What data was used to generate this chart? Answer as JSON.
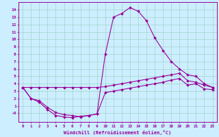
{
  "xlabel": "Windchill (Refroidissement éolien,°C)",
  "bg_color": "#cceeff",
  "line_color": "#990099",
  "grid_color": "#99ccbb",
  "xlim": [
    -0.5,
    23.5
  ],
  "ylim": [
    -1.2,
    15.0
  ],
  "line_peak": [
    3.5,
    2.0,
    1.7,
    0.8,
    0.1,
    -0.2,
    -0.3,
    -0.5,
    -0.3,
    -0.1,
    8.0,
    13.0,
    13.5,
    14.3,
    13.8,
    12.5,
    10.2,
    8.5,
    7.0,
    6.0,
    5.2,
    5.0,
    4.0,
    3.5
  ],
  "line_mid": [
    3.5,
    2.0,
    1.5,
    0.5,
    -0.3,
    -0.5,
    -0.6,
    -0.4,
    -0.3,
    -0.1,
    2.8,
    3.0,
    3.2,
    3.4,
    3.6,
    3.8,
    4.0,
    4.2,
    4.5,
    4.7,
    3.8,
    4.0,
    3.3,
    3.2
  ],
  "line_upper": [
    3.5,
    3.5,
    3.5,
    3.5,
    3.5,
    3.5,
    3.5,
    3.5,
    3.5,
    3.5,
    3.6,
    3.8,
    4.0,
    4.2,
    4.4,
    4.6,
    4.8,
    5.0,
    5.2,
    5.4,
    4.4,
    4.2,
    3.8,
    3.5
  ],
  "x_hours": [
    0,
    1,
    2,
    3,
    4,
    5,
    6,
    7,
    8,
    9,
    10,
    11,
    12,
    13,
    14,
    15,
    16,
    17,
    18,
    19,
    20,
    21,
    22,
    23
  ],
  "ytick_labels": [
    "-0",
    "1",
    "2",
    "3",
    "4",
    "5",
    "6",
    "7",
    "8",
    "9",
    "10",
    "11",
    "12",
    "13",
    "14"
  ],
  "ytick_values": [
    0,
    1,
    2,
    3,
    4,
    5,
    6,
    7,
    8,
    9,
    10,
    11,
    12,
    13,
    14
  ]
}
